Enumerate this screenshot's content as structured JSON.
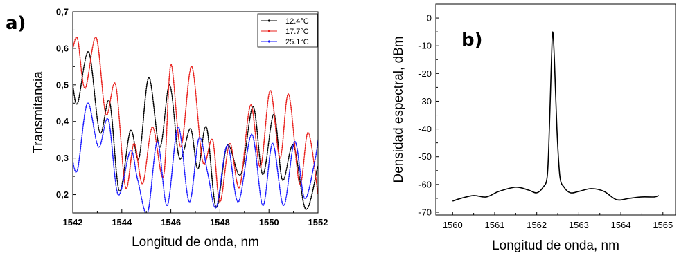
{
  "chart_data": [
    {
      "panel_label": "a)",
      "type": "line",
      "xlabel": "Longitud de onda, nm",
      "ylabel": "Transmitancia",
      "xlim": [
        1542,
        1552
      ],
      "ylim": [
        0.15,
        0.7
      ],
      "xticks": [
        1542,
        1544,
        1546,
        1548,
        1550,
        1552
      ],
      "xtick_labels": [
        "1542",
        "1544",
        "1546",
        "1548",
        "1550",
        "1552"
      ],
      "yticks": [
        0.2,
        0.3,
        0.4,
        0.5,
        0.6,
        0.7
      ],
      "ytick_labels": [
        "0,2",
        "0,3",
        "0,4",
        "0,5",
        "0,6",
        "0,7"
      ],
      "legend_position": "top-right",
      "grid": false,
      "series": [
        {
          "name": "12.4°C",
          "color": "#000000",
          "x": [
            1542.0,
            1542.2,
            1542.65,
            1543.1,
            1543.5,
            1543.9,
            1544.35,
            1544.7,
            1545.1,
            1545.55,
            1545.95,
            1546.35,
            1546.8,
            1547.1,
            1547.45,
            1547.85,
            1548.3,
            1548.85,
            1549.35,
            1549.75,
            1550.2,
            1550.55,
            1551.0,
            1551.5,
            1552.0
          ],
          "y": [
            0.5,
            0.45,
            0.59,
            0.37,
            0.455,
            0.21,
            0.375,
            0.3,
            0.52,
            0.33,
            0.5,
            0.3,
            0.38,
            0.27,
            0.385,
            0.165,
            0.335,
            0.255,
            0.44,
            0.255,
            0.42,
            0.24,
            0.335,
            0.16,
            0.28
          ]
        },
        {
          "name": "17.7°C",
          "color": "#e8201c",
          "x": [
            1542.0,
            1542.2,
            1542.5,
            1542.95,
            1543.35,
            1543.75,
            1544.15,
            1544.5,
            1544.85,
            1545.25,
            1545.7,
            1546.0,
            1546.4,
            1546.85,
            1547.3,
            1547.7,
            1548.0,
            1548.4,
            1548.8,
            1549.25,
            1549.65,
            1550.05,
            1550.45,
            1550.8,
            1551.25,
            1551.6,
            1552.0
          ],
          "y": [
            0.6,
            0.625,
            0.49,
            0.63,
            0.42,
            0.5,
            0.22,
            0.34,
            0.23,
            0.385,
            0.25,
            0.555,
            0.33,
            0.55,
            0.29,
            0.35,
            0.18,
            0.34,
            0.22,
            0.445,
            0.275,
            0.485,
            0.3,
            0.475,
            0.23,
            0.37,
            0.2
          ]
        },
        {
          "name": "25.1°C",
          "color": "#1a1aff",
          "x": [
            1542.0,
            1542.2,
            1542.6,
            1543.05,
            1543.45,
            1543.85,
            1544.35,
            1544.65,
            1545.05,
            1545.45,
            1545.85,
            1546.3,
            1546.75,
            1547.15,
            1547.5,
            1547.85,
            1548.3,
            1548.75,
            1549.3,
            1549.75,
            1550.15,
            1550.6,
            1551.05,
            1551.45,
            1551.85,
            1552.0
          ],
          "y": [
            0.29,
            0.27,
            0.45,
            0.33,
            0.405,
            0.2,
            0.32,
            0.24,
            0.15,
            0.345,
            0.17,
            0.385,
            0.18,
            0.355,
            0.26,
            0.165,
            0.335,
            0.18,
            0.365,
            0.17,
            0.34,
            0.17,
            0.345,
            0.19,
            0.285,
            0.35
          ]
        }
      ]
    },
    {
      "panel_label": "b)",
      "type": "line",
      "xlabel": "Longitud de onda, nm",
      "ylabel": "Densidad espectral, dBm",
      "xlim": [
        1559.6,
        1565.3
      ],
      "ylim": [
        -71,
        5
      ],
      "xticks": [
        1560,
        1561,
        1562,
        1563,
        1564,
        1565
      ],
      "xtick_labels": [
        "1560",
        "1561",
        "1562",
        "1563",
        "1564",
        "1565"
      ],
      "yticks": [
        0,
        -10,
        -20,
        -30,
        -40,
        -50,
        -60,
        -70
      ],
      "ytick_labels": [
        "0",
        "-10",
        "-20",
        "-30",
        "-40",
        "-50",
        "-60",
        "-70"
      ],
      "grid": false,
      "series": [
        {
          "color": "#000000",
          "x": [
            1560.0,
            1560.2,
            1560.5,
            1560.8,
            1561.1,
            1561.5,
            1561.8,
            1562.0,
            1562.15,
            1562.25,
            1562.3,
            1562.35,
            1562.38,
            1562.42,
            1562.48,
            1562.55,
            1562.65,
            1562.8,
            1563.0,
            1563.3,
            1563.6,
            1563.9,
            1564.2,
            1564.5,
            1564.8,
            1564.9
          ],
          "y": [
            -66,
            -65,
            -64,
            -64.5,
            -62.5,
            -61,
            -62,
            -63,
            -61,
            -57,
            -40,
            -15,
            -5,
            -15,
            -40,
            -57,
            -61,
            -63,
            -62.5,
            -61.5,
            -62.5,
            -65.5,
            -65,
            -64.5,
            -64.5,
            -64
          ]
        }
      ]
    }
  ]
}
